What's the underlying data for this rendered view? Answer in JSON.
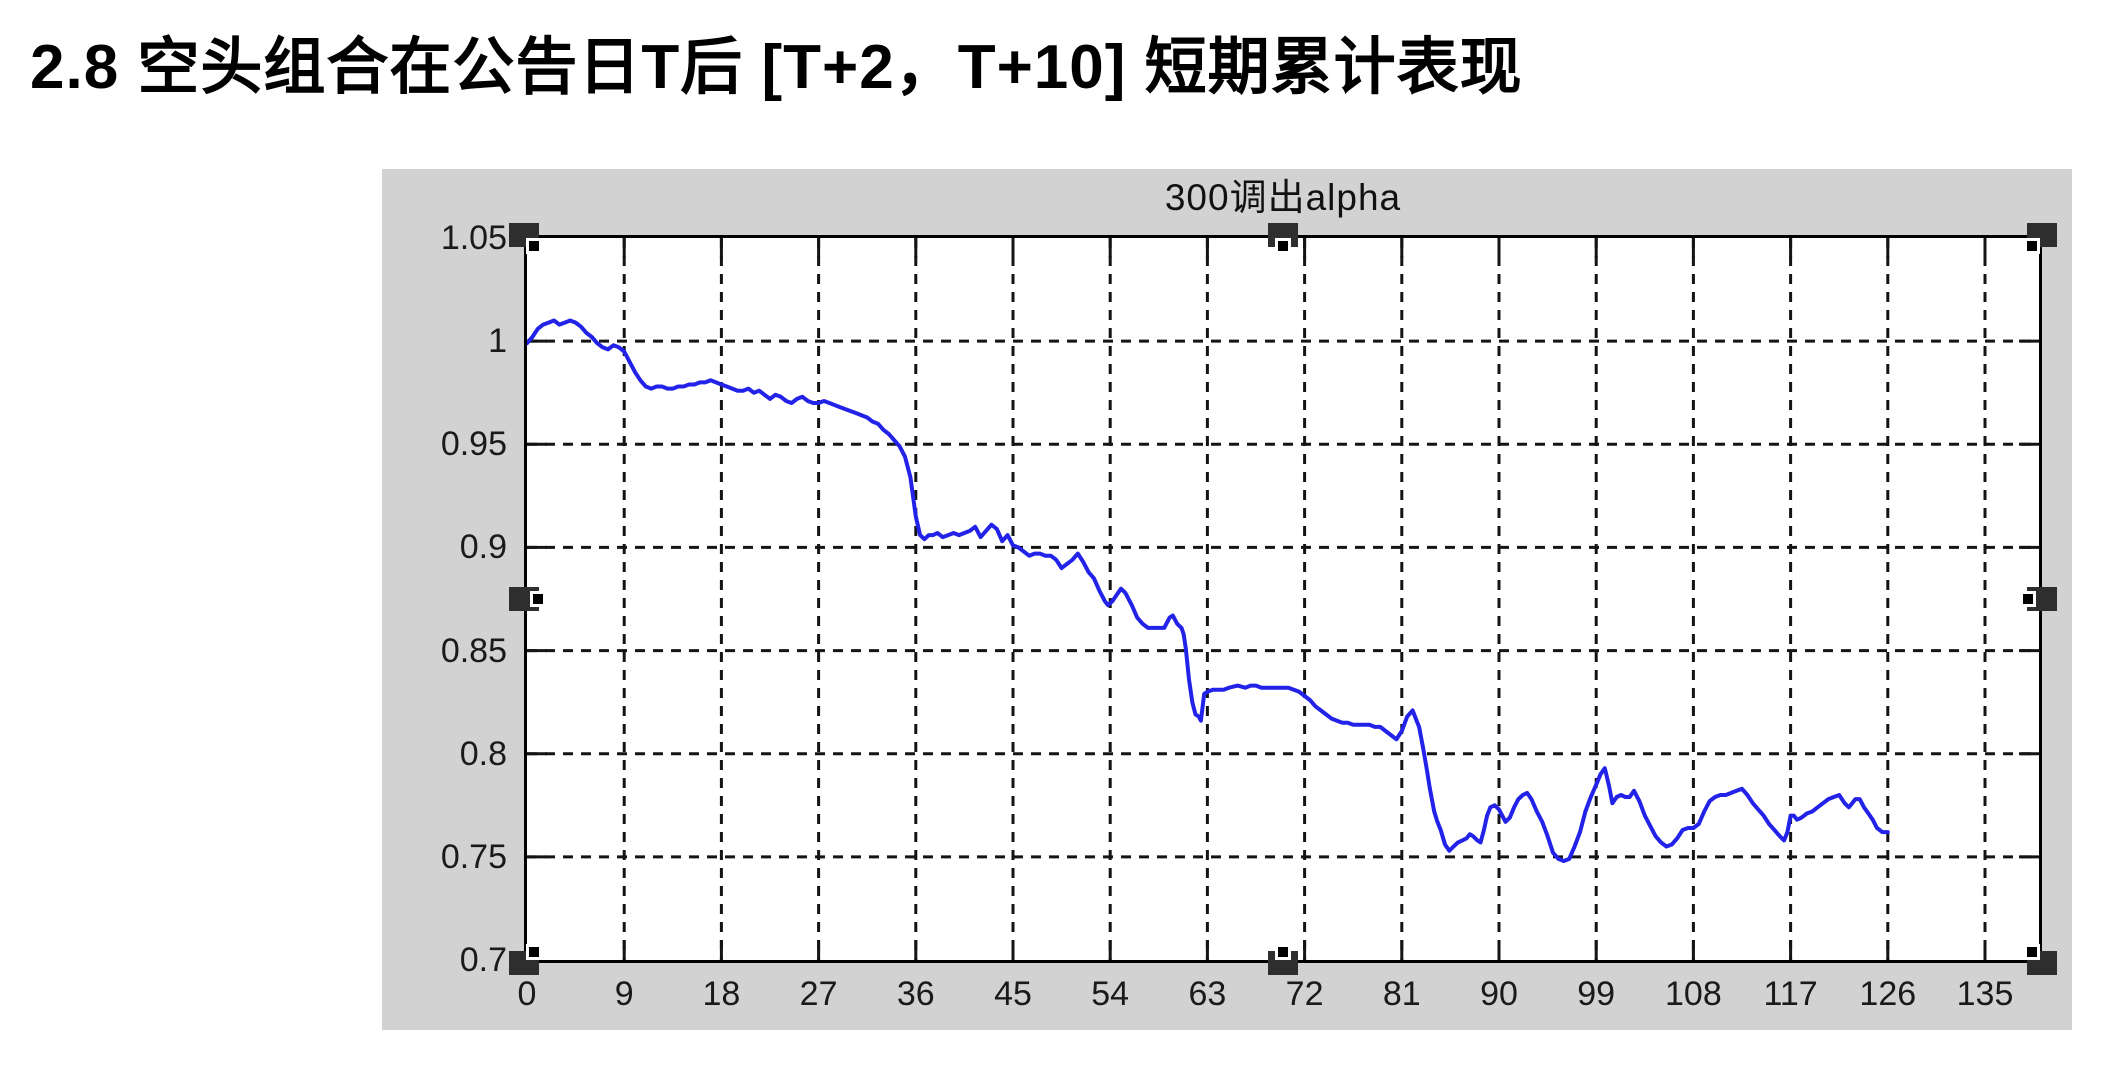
{
  "page": {
    "title": "2.8 空头组合在公告日T后 [T+2，T+10] 短期累计表现"
  },
  "figure": {
    "selected": true,
    "background_color": "#d2d2d2",
    "handles": [
      "top-left",
      "top-middle",
      "top-right",
      "middle-left",
      "middle-right",
      "bottom-left",
      "bottom-middle",
      "bottom-right"
    ]
  },
  "chart_data": {
    "type": "line",
    "title": "300调出alpha",
    "xlabel": "",
    "ylabel": "",
    "xlim": [
      0,
      140
    ],
    "ylim": [
      0.7,
      1.05
    ],
    "x_ticks": [
      "0",
      "9",
      "18",
      "27",
      "36",
      "45",
      "54",
      "63",
      "72",
      "81",
      "90",
      "99",
      "108",
      "117",
      "126",
      "135"
    ],
    "y_ticks": [
      "1.05",
      "1",
      "0.95",
      "0.9",
      "0.85",
      "0.8",
      "0.75",
      "0.7"
    ],
    "grid": "dashed-both",
    "grid_color": "#141414",
    "line_color": "#2222e8",
    "plot_bg": "#ffffff",
    "series": [
      {
        "name": "300调出alpha",
        "points": [
          [
            0,
            0.999
          ],
          [
            0.5,
            1.002
          ],
          [
            1,
            1.006
          ],
          [
            1.5,
            1.008
          ],
          [
            2,
            1.009
          ],
          [
            2.5,
            1.01
          ],
          [
            3,
            1.008
          ],
          [
            3.5,
            1.009
          ],
          [
            4,
            1.01
          ],
          [
            4.5,
            1.009
          ],
          [
            5,
            1.007
          ],
          [
            5.5,
            1.004
          ],
          [
            6,
            1.002
          ],
          [
            6.5,
            0.999
          ],
          [
            7,
            0.997
          ],
          [
            7.5,
            0.996
          ],
          [
            8,
            0.998
          ],
          [
            8.5,
            0.997
          ],
          [
            9,
            0.995
          ],
          [
            9.5,
            0.99
          ],
          [
            10,
            0.985
          ],
          [
            10.5,
            0.981
          ],
          [
            11,
            0.978
          ],
          [
            11.5,
            0.977
          ],
          [
            12,
            0.978
          ],
          [
            12.5,
            0.978
          ],
          [
            13,
            0.977
          ],
          [
            13.5,
            0.977
          ],
          [
            14,
            0.978
          ],
          [
            14.5,
            0.978
          ],
          [
            15,
            0.979
          ],
          [
            15.5,
            0.979
          ],
          [
            16,
            0.98
          ],
          [
            16.5,
            0.98
          ],
          [
            17,
            0.981
          ],
          [
            17.5,
            0.98
          ],
          [
            18,
            0.979
          ],
          [
            18.5,
            0.978
          ],
          [
            19,
            0.977
          ],
          [
            19.5,
            0.976
          ],
          [
            20,
            0.976
          ],
          [
            20.5,
            0.977
          ],
          [
            21,
            0.975
          ],
          [
            21.5,
            0.976
          ],
          [
            22,
            0.974
          ],
          [
            22.5,
            0.972
          ],
          [
            23,
            0.974
          ],
          [
            23.5,
            0.973
          ],
          [
            24,
            0.971
          ],
          [
            24.5,
            0.97
          ],
          [
            25,
            0.972
          ],
          [
            25.5,
            0.973
          ],
          [
            26,
            0.971
          ],
          [
            26.5,
            0.97
          ],
          [
            27,
            0.97
          ],
          [
            27.5,
            0.971
          ],
          [
            28,
            0.97
          ],
          [
            28.5,
            0.969
          ],
          [
            29,
            0.968
          ],
          [
            29.5,
            0.967
          ],
          [
            30,
            0.966
          ],
          [
            30.5,
            0.965
          ],
          [
            31,
            0.964
          ],
          [
            31.5,
            0.963
          ],
          [
            32,
            0.961
          ],
          [
            32.5,
            0.96
          ],
          [
            33,
            0.957
          ],
          [
            33.5,
            0.955
          ],
          [
            34,
            0.952
          ],
          [
            34.5,
            0.949
          ],
          [
            35,
            0.944
          ],
          [
            35.5,
            0.934
          ],
          [
            36,
            0.915
          ],
          [
            36.4,
            0.906
          ],
          [
            36.8,
            0.904
          ],
          [
            37.2,
            0.906
          ],
          [
            37.6,
            0.906
          ],
          [
            38,
            0.907
          ],
          [
            38.5,
            0.905
          ],
          [
            39,
            0.906
          ],
          [
            39.5,
            0.907
          ],
          [
            40,
            0.906
          ],
          [
            40.5,
            0.907
          ],
          [
            41,
            0.908
          ],
          [
            41.5,
            0.91
          ],
          [
            42,
            0.905
          ],
          [
            42.5,
            0.908
          ],
          [
            43,
            0.911
          ],
          [
            43.5,
            0.909
          ],
          [
            44,
            0.903
          ],
          [
            44.5,
            0.906
          ],
          [
            45,
            0.901
          ],
          [
            45.5,
            0.9
          ],
          [
            46,
            0.898
          ],
          [
            46.5,
            0.896
          ],
          [
            47,
            0.897
          ],
          [
            47.5,
            0.897
          ],
          [
            48,
            0.896
          ],
          [
            48.5,
            0.896
          ],
          [
            49,
            0.894
          ],
          [
            49.5,
            0.89
          ],
          [
            50,
            0.892
          ],
          [
            50.5,
            0.894
          ],
          [
            51,
            0.897
          ],
          [
            51.5,
            0.893
          ],
          [
            52,
            0.888
          ],
          [
            52.5,
            0.885
          ],
          [
            53,
            0.879
          ],
          [
            53.5,
            0.874
          ],
          [
            53.8,
            0.872
          ],
          [
            54.2,
            0.874
          ],
          [
            54.6,
            0.877
          ],
          [
            55,
            0.88
          ],
          [
            55.4,
            0.878
          ],
          [
            56,
            0.872
          ],
          [
            56.5,
            0.866
          ],
          [
            57,
            0.863
          ],
          [
            57.5,
            0.861
          ],
          [
            58,
            0.861
          ],
          [
            58.5,
            0.861
          ],
          [
            59,
            0.861
          ],
          [
            59.5,
            0.866
          ],
          [
            59.8,
            0.867
          ],
          [
            60.2,
            0.863
          ],
          [
            60.6,
            0.861
          ],
          [
            60.8,
            0.858
          ],
          [
            61,
            0.851
          ],
          [
            61.3,
            0.836
          ],
          [
            61.6,
            0.825
          ],
          [
            61.9,
            0.819
          ],
          [
            62.2,
            0.818
          ],
          [
            62.4,
            0.816
          ],
          [
            62.7,
            0.829
          ],
          [
            63,
            0.83
          ],
          [
            63.5,
            0.831
          ],
          [
            64,
            0.831
          ],
          [
            64.5,
            0.831
          ],
          [
            65,
            0.832
          ],
          [
            65.8,
            0.833
          ],
          [
            66.5,
            0.832
          ],
          [
            67,
            0.833
          ],
          [
            67.5,
            0.833
          ],
          [
            68,
            0.832
          ],
          [
            68.5,
            0.832
          ],
          [
            69,
            0.832
          ],
          [
            69.5,
            0.832
          ],
          [
            70,
            0.832
          ],
          [
            70.5,
            0.832
          ],
          [
            71,
            0.831
          ],
          [
            71.5,
            0.83
          ],
          [
            72,
            0.828
          ],
          [
            72.5,
            0.826
          ],
          [
            73,
            0.823
          ],
          [
            73.5,
            0.821
          ],
          [
            74,
            0.819
          ],
          [
            74.5,
            0.817
          ],
          [
            75,
            0.816
          ],
          [
            75.5,
            0.815
          ],
          [
            76,
            0.815
          ],
          [
            76.5,
            0.814
          ],
          [
            77,
            0.814
          ],
          [
            77.5,
            0.814
          ],
          [
            78,
            0.814
          ],
          [
            78.5,
            0.813
          ],
          [
            79,
            0.813
          ],
          [
            79.5,
            0.811
          ],
          [
            80,
            0.809
          ],
          [
            80.5,
            0.807
          ],
          [
            81,
            0.811
          ],
          [
            81.5,
            0.818
          ],
          [
            82,
            0.821
          ],
          [
            82.3,
            0.817
          ],
          [
            82.6,
            0.813
          ],
          [
            83,
            0.802
          ],
          [
            83.3,
            0.793
          ],
          [
            83.6,
            0.783
          ],
          [
            84,
            0.772
          ],
          [
            84.3,
            0.767
          ],
          [
            84.6,
            0.763
          ],
          [
            85,
            0.756
          ],
          [
            85.4,
            0.753
          ],
          [
            85.8,
            0.755
          ],
          [
            86.2,
            0.757
          ],
          [
            86.6,
            0.758
          ],
          [
            87,
            0.759
          ],
          [
            87.3,
            0.761
          ],
          [
            87.6,
            0.76
          ],
          [
            88,
            0.758
          ],
          [
            88.3,
            0.757
          ],
          [
            88.6,
            0.763
          ],
          [
            88.9,
            0.77
          ],
          [
            89.2,
            0.774
          ],
          [
            89.6,
            0.775
          ],
          [
            90,
            0.773
          ],
          [
            90.3,
            0.77
          ],
          [
            90.6,
            0.767
          ],
          [
            91,
            0.769
          ],
          [
            91.4,
            0.774
          ],
          [
            91.8,
            0.778
          ],
          [
            92.2,
            0.78
          ],
          [
            92.6,
            0.781
          ],
          [
            93,
            0.778
          ],
          [
            93.5,
            0.772
          ],
          [
            94,
            0.767
          ],
          [
            94.5,
            0.76
          ],
          [
            95,
            0.752
          ],
          [
            95.5,
            0.749
          ],
          [
            96,
            0.748
          ],
          [
            96.5,
            0.749
          ],
          [
            97,
            0.755
          ],
          [
            97.5,
            0.762
          ],
          [
            98,
            0.772
          ],
          [
            98.5,
            0.779
          ],
          [
            99,
            0.785
          ],
          [
            99.4,
            0.79
          ],
          [
            99.8,
            0.793
          ],
          [
            100.2,
            0.784
          ],
          [
            100.5,
            0.776
          ],
          [
            100.9,
            0.779
          ],
          [
            101.3,
            0.78
          ],
          [
            101.7,
            0.779
          ],
          [
            102.1,
            0.779
          ],
          [
            102.5,
            0.782
          ],
          [
            103,
            0.777
          ],
          [
            103.5,
            0.77
          ],
          [
            104,
            0.765
          ],
          [
            104.5,
            0.76
          ],
          [
            105,
            0.757
          ],
          [
            105.5,
            0.755
          ],
          [
            106,
            0.756
          ],
          [
            106.5,
            0.759
          ],
          [
            107,
            0.763
          ],
          [
            107.5,
            0.764
          ],
          [
            108,
            0.764
          ],
          [
            108.5,
            0.766
          ],
          [
            109,
            0.772
          ],
          [
            109.5,
            0.777
          ],
          [
            110,
            0.779
          ],
          [
            110.5,
            0.78
          ],
          [
            111,
            0.78
          ],
          [
            111.5,
            0.781
          ],
          [
            112,
            0.782
          ],
          [
            112.5,
            0.783
          ],
          [
            113,
            0.78
          ],
          [
            113.5,
            0.776
          ],
          [
            114,
            0.773
          ],
          [
            114.5,
            0.77
          ],
          [
            115,
            0.766
          ],
          [
            115.5,
            0.763
          ],
          [
            116,
            0.76
          ],
          [
            116.4,
            0.758
          ],
          [
            116.7,
            0.762
          ],
          [
            117,
            0.77
          ],
          [
            117.3,
            0.77
          ],
          [
            117.6,
            0.768
          ],
          [
            118,
            0.769
          ],
          [
            118.5,
            0.771
          ],
          [
            119,
            0.772
          ],
          [
            119.5,
            0.774
          ],
          [
            120,
            0.776
          ],
          [
            120.5,
            0.778
          ],
          [
            121,
            0.779
          ],
          [
            121.5,
            0.78
          ],
          [
            122,
            0.776
          ],
          [
            122.4,
            0.774
          ],
          [
            122.7,
            0.776
          ],
          [
            123,
            0.778
          ],
          [
            123.4,
            0.778
          ],
          [
            123.8,
            0.774
          ],
          [
            124.2,
            0.771
          ],
          [
            124.6,
            0.768
          ],
          [
            125,
            0.764
          ],
          [
            125.5,
            0.762
          ],
          [
            126,
            0.762
          ]
        ]
      }
    ]
  }
}
